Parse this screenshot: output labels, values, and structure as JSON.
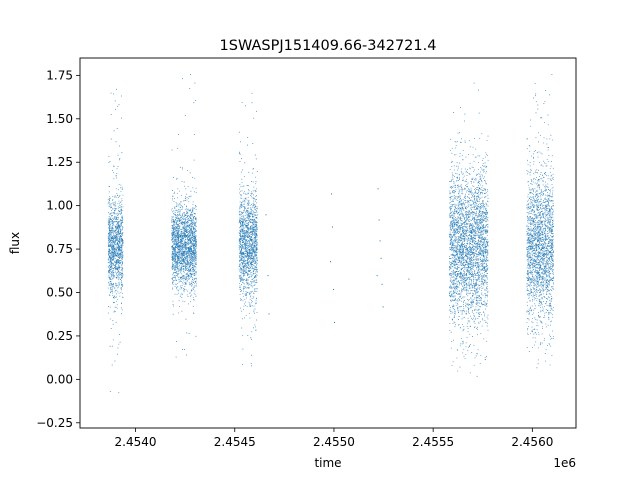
{
  "chart_data": {
    "type": "scatter",
    "title": "1SWASPJ151409.66-342721.4",
    "xlabel": "time",
    "ylabel": "flux",
    "x_offset_label": "1e6",
    "xlim": [
      2453720,
      2456220
    ],
    "ylim": [
      -0.28,
      1.85
    ],
    "x_ticks": [
      2454000,
      2454500,
      2455000,
      2455500,
      2456000
    ],
    "x_tick_labels": [
      "2.4540",
      "2.4545",
      "2.4550",
      "2.4555",
      "2.4560"
    ],
    "y_ticks": [
      -0.25,
      0,
      0.25,
      0.5,
      0.75,
      1.0,
      1.25,
      1.5,
      1.75
    ],
    "y_tick_labels": [
      "−0.25",
      "0.00",
      "0.25",
      "0.50",
      "0.75",
      "1.00",
      "1.25",
      "1.50",
      "1.75"
    ],
    "grid": false,
    "legend": "none",
    "point_color": "#1f77b4",
    "series": [
      {
        "seasons": [
          {
            "x_range": [
              2453860,
              2453935
            ],
            "center": 0.77,
            "spread": 0.14,
            "y_range": [
              -0.18,
              1.75
            ]
          },
          {
            "x_range": [
              2454180,
              2454305
            ],
            "center": 0.77,
            "spread": 0.12,
            "y_range": [
              0.12,
              1.76
            ]
          },
          {
            "x_range": [
              2454520,
              2454612
            ],
            "center": 0.77,
            "spread": 0.15,
            "y_range": [
              0.02,
              1.65
            ]
          },
          {
            "x_range": [
              2455580,
              2455775
            ],
            "center": 0.77,
            "spread": 0.22,
            "y_range": [
              0.0,
              1.73
            ]
          },
          {
            "x_range": [
              2455970,
              2456105
            ],
            "center": 0.77,
            "spread": 0.22,
            "y_range": [
              0.03,
              1.76
            ]
          }
        ],
        "sparse_points": [
          [
            2454655,
            0.95
          ],
          [
            2454665,
            0.6
          ],
          [
            2454670,
            0.38
          ],
          [
            2454985,
            1.07
          ],
          [
            2454990,
            0.88
          ],
          [
            2454995,
            0.52
          ],
          [
            2455000,
            0.33
          ],
          [
            2454980,
            0.68
          ],
          [
            2455220,
            1.1
          ],
          [
            2455225,
            0.92
          ],
          [
            2455230,
            0.8
          ],
          [
            2455235,
            0.7
          ],
          [
            2455240,
            0.55
          ],
          [
            2455245,
            0.42
          ],
          [
            2455215,
            0.6
          ],
          [
            2455375,
            0.58
          ]
        ]
      }
    ]
  }
}
